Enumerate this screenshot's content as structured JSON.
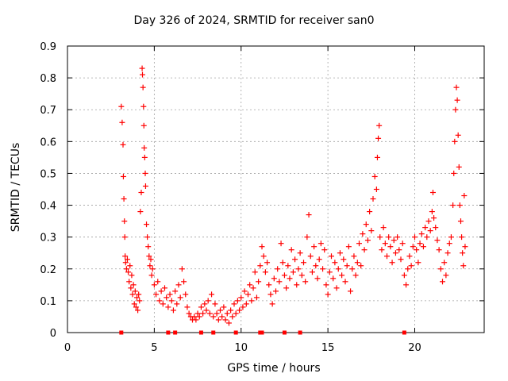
{
  "chart_data": {
    "type": "scatter",
    "title": "Day 326 of 2024, SRMTID for receiver san0",
    "xlabel": "GPS time / hours",
    "ylabel": "SRMTID / TECUs",
    "xlim": [
      0,
      24
    ],
    "ylim": [
      0,
      0.9
    ],
    "xticks": [
      0,
      5,
      10,
      15,
      20
    ],
    "yticks": [
      0,
      0.1,
      0.2,
      0.3,
      0.4,
      0.5,
      0.6,
      0.7,
      0.8,
      0.9
    ],
    "xtick_labels": [
      "0",
      "5",
      "10",
      "15",
      "20"
    ],
    "ytick_labels": [
      "0",
      "0.1",
      "0.2",
      "0.3",
      "0.4",
      "0.5",
      "0.6",
      "0.7",
      "0.8",
      "0.9"
    ],
    "grid": true,
    "marker": "+",
    "color": "#ff0000",
    "series": [
      {
        "name": "SRMTID",
        "points": [
          [
            3.1,
            0.71
          ],
          [
            3.15,
            0.66
          ],
          [
            3.2,
            0.59
          ],
          [
            3.22,
            0.49
          ],
          [
            3.25,
            0.42
          ],
          [
            3.28,
            0.35
          ],
          [
            3.3,
            0.3
          ],
          [
            3.32,
            0.24
          ],
          [
            3.35,
            0.22
          ],
          [
            3.4,
            0.2
          ],
          [
            3.45,
            0.23
          ],
          [
            3.5,
            0.19
          ],
          [
            3.55,
            0.16
          ],
          [
            3.6,
            0.21
          ],
          [
            3.65,
            0.14
          ],
          [
            3.7,
            0.18
          ],
          [
            3.75,
            0.12
          ],
          [
            3.8,
            0.15
          ],
          [
            3.85,
            0.09
          ],
          [
            3.9,
            0.13
          ],
          [
            3.95,
            0.08
          ],
          [
            4.0,
            0.11
          ],
          [
            4.05,
            0.07
          ],
          [
            4.1,
            0.12
          ],
          [
            4.15,
            0.1
          ],
          [
            4.2,
            0.38
          ],
          [
            4.25,
            0.44
          ],
          [
            4.3,
            0.83
          ],
          [
            4.32,
            0.81
          ],
          [
            4.35,
            0.77
          ],
          [
            4.38,
            0.71
          ],
          [
            4.4,
            0.65
          ],
          [
            4.42,
            0.58
          ],
          [
            4.45,
            0.55
          ],
          [
            4.48,
            0.5
          ],
          [
            4.5,
            0.46
          ],
          [
            4.55,
            0.34
          ],
          [
            4.6,
            0.3
          ],
          [
            4.65,
            0.27
          ],
          [
            4.7,
            0.24
          ],
          [
            4.75,
            0.21
          ],
          [
            4.8,
            0.23
          ],
          [
            4.85,
            0.18
          ],
          [
            4.9,
            0.2
          ],
          [
            5.0,
            0.15
          ],
          [
            5.1,
            0.12
          ],
          [
            5.2,
            0.16
          ],
          [
            5.3,
            0.1
          ],
          [
            5.4,
            0.13
          ],
          [
            5.5,
            0.09
          ],
          [
            5.6,
            0.14
          ],
          [
            5.7,
            0.11
          ],
          [
            5.8,
            0.08
          ],
          [
            5.9,
            0.12
          ],
          [
            6.0,
            0.1
          ],
          [
            6.1,
            0.07
          ],
          [
            6.2,
            0.13
          ],
          [
            6.3,
            0.09
          ],
          [
            6.4,
            0.15
          ],
          [
            6.5,
            0.11
          ],
          [
            6.6,
            0.2
          ],
          [
            6.7,
            0.16
          ],
          [
            6.8,
            0.12
          ],
          [
            6.9,
            0.08
          ],
          [
            7.0,
            0.06
          ],
          [
            7.1,
            0.05
          ],
          [
            7.2,
            0.04
          ],
          [
            7.3,
            0.05
          ],
          [
            7.4,
            0.04
          ],
          [
            7.5,
            0.06
          ],
          [
            7.6,
            0.05
          ],
          [
            7.7,
            0.08
          ],
          [
            7.8,
            0.06
          ],
          [
            7.9,
            0.09
          ],
          [
            8.0,
            0.07
          ],
          [
            8.1,
            0.1
          ],
          [
            8.2,
            0.06
          ],
          [
            8.3,
            0.12
          ],
          [
            8.4,
            0.05
          ],
          [
            8.5,
            0.09
          ],
          [
            8.6,
            0.06
          ],
          [
            8.7,
            0.04
          ],
          [
            8.8,
            0.07
          ],
          [
            8.9,
            0.05
          ],
          [
            9.0,
            0.08
          ],
          [
            9.1,
            0.04
          ],
          [
            9.2,
            0.06
          ],
          [
            9.3,
            0.03
          ],
          [
            9.4,
            0.07
          ],
          [
            9.5,
            0.05
          ],
          [
            9.6,
            0.09
          ],
          [
            9.7,
            0.06
          ],
          [
            9.8,
            0.1
          ],
          [
            9.9,
            0.07
          ],
          [
            10.0,
            0.11
          ],
          [
            10.1,
            0.08
          ],
          [
            10.2,
            0.13
          ],
          [
            10.3,
            0.09
          ],
          [
            10.4,
            0.12
          ],
          [
            10.5,
            0.15
          ],
          [
            10.6,
            0.1
          ],
          [
            10.7,
            0.14
          ],
          [
            10.8,
            0.19
          ],
          [
            10.9,
            0.11
          ],
          [
            11.0,
            0.16
          ],
          [
            11.1,
            0.21
          ],
          [
            11.2,
            0.27
          ],
          [
            11.3,
            0.24
          ],
          [
            11.4,
            0.19
          ],
          [
            11.5,
            0.22
          ],
          [
            11.6,
            0.15
          ],
          [
            11.7,
            0.12
          ],
          [
            11.8,
            0.09
          ],
          [
            11.9,
            0.17
          ],
          [
            12.0,
            0.13
          ],
          [
            12.1,
            0.2
          ],
          [
            12.2,
            0.16
          ],
          [
            12.3,
            0.28
          ],
          [
            12.4,
            0.22
          ],
          [
            12.5,
            0.18
          ],
          [
            12.6,
            0.14
          ],
          [
            12.7,
            0.21
          ],
          [
            12.8,
            0.17
          ],
          [
            12.9,
            0.26
          ],
          [
            13.0,
            0.19
          ],
          [
            13.1,
            0.23
          ],
          [
            13.2,
            0.15
          ],
          [
            13.3,
            0.2
          ],
          [
            13.4,
            0.25
          ],
          [
            13.5,
            0.18
          ],
          [
            13.6,
            0.22
          ],
          [
            13.7,
            0.16
          ],
          [
            13.8,
            0.3
          ],
          [
            13.9,
            0.37
          ],
          [
            14.0,
            0.24
          ],
          [
            14.1,
            0.19
          ],
          [
            14.2,
            0.27
          ],
          [
            14.3,
            0.21
          ],
          [
            14.4,
            0.17
          ],
          [
            14.5,
            0.23
          ],
          [
            14.6,
            0.28
          ],
          [
            14.7,
            0.2
          ],
          [
            14.8,
            0.26
          ],
          [
            14.9,
            0.15
          ],
          [
            15.0,
            0.12
          ],
          [
            15.1,
            0.19
          ],
          [
            15.2,
            0.24
          ],
          [
            15.3,
            0.17
          ],
          [
            15.4,
            0.22
          ],
          [
            15.5,
            0.14
          ],
          [
            15.6,
            0.2
          ],
          [
            15.7,
            0.25
          ],
          [
            15.8,
            0.18
          ],
          [
            15.9,
            0.23
          ],
          [
            16.0,
            0.16
          ],
          [
            16.1,
            0.21
          ],
          [
            16.2,
            0.27
          ],
          [
            16.3,
            0.13
          ],
          [
            16.4,
            0.2
          ],
          [
            16.5,
            0.24
          ],
          [
            16.6,
            0.18
          ],
          [
            16.7,
            0.22
          ],
          [
            16.8,
            0.28
          ],
          [
            16.9,
            0.21
          ],
          [
            17.0,
            0.31
          ],
          [
            17.1,
            0.26
          ],
          [
            17.2,
            0.34
          ],
          [
            17.3,
            0.29
          ],
          [
            17.4,
            0.38
          ],
          [
            17.5,
            0.32
          ],
          [
            17.6,
            0.42
          ],
          [
            17.7,
            0.49
          ],
          [
            17.8,
            0.45
          ],
          [
            17.85,
            0.55
          ],
          [
            17.9,
            0.61
          ],
          [
            17.95,
            0.65
          ],
          [
            18.0,
            0.3
          ],
          [
            18.1,
            0.26
          ],
          [
            18.2,
            0.33
          ],
          [
            18.3,
            0.28
          ],
          [
            18.4,
            0.24
          ],
          [
            18.5,
            0.3
          ],
          [
            18.6,
            0.27
          ],
          [
            18.7,
            0.22
          ],
          [
            18.8,
            0.29
          ],
          [
            18.9,
            0.25
          ],
          [
            19.0,
            0.3
          ],
          [
            19.1,
            0.26
          ],
          [
            19.2,
            0.23
          ],
          [
            19.3,
            0.28
          ],
          [
            19.4,
            0.18
          ],
          [
            19.5,
            0.15
          ],
          [
            19.6,
            0.2
          ],
          [
            19.7,
            0.24
          ],
          [
            19.8,
            0.21
          ],
          [
            19.9,
            0.27
          ],
          [
            20.0,
            0.3
          ],
          [
            20.1,
            0.26
          ],
          [
            20.2,
            0.22
          ],
          [
            20.3,
            0.28
          ],
          [
            20.4,
            0.31
          ],
          [
            20.5,
            0.27
          ],
          [
            20.6,
            0.33
          ],
          [
            20.7,
            0.3
          ],
          [
            20.8,
            0.35
          ],
          [
            20.9,
            0.32
          ],
          [
            21.0,
            0.38
          ],
          [
            21.05,
            0.44
          ],
          [
            21.1,
            0.36
          ],
          [
            21.2,
            0.33
          ],
          [
            21.3,
            0.29
          ],
          [
            21.4,
            0.26
          ],
          [
            21.5,
            0.2
          ],
          [
            21.6,
            0.16
          ],
          [
            21.7,
            0.22
          ],
          [
            21.8,
            0.18
          ],
          [
            21.9,
            0.25
          ],
          [
            22.0,
            0.28
          ],
          [
            22.1,
            0.3
          ],
          [
            22.2,
            0.4
          ],
          [
            22.25,
            0.5
          ],
          [
            22.3,
            0.6
          ],
          [
            22.35,
            0.7
          ],
          [
            22.4,
            0.77
          ],
          [
            22.45,
            0.73
          ],
          [
            22.5,
            0.62
          ],
          [
            22.55,
            0.52
          ],
          [
            22.6,
            0.4
          ],
          [
            22.65,
            0.35
          ],
          [
            22.7,
            0.3
          ],
          [
            22.75,
            0.25
          ],
          [
            22.8,
            0.21
          ],
          [
            22.85,
            0.43
          ],
          [
            22.9,
            0.27
          ]
        ]
      }
    ],
    "zero_markers_x": [
      3.1,
      5.8,
      6.2,
      7.7,
      8.4,
      9.7,
      11.1,
      11.2,
      12.5,
      13.4,
      19.4
    ]
  }
}
